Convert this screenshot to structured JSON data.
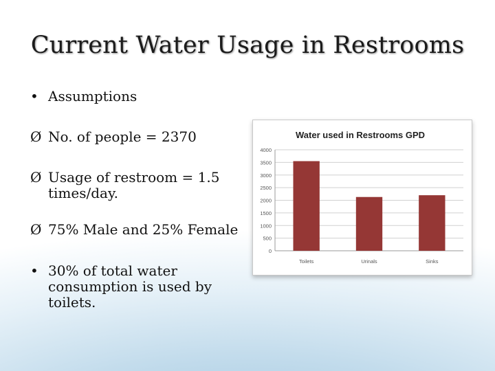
{
  "slide": {
    "title": "Current Water Usage in Restrooms",
    "bullets": [
      {
        "marker": "•",
        "lines": [
          "Assumptions"
        ]
      },
      {
        "marker": "Ø",
        "lines": [
          "No. of people = 2370"
        ]
      },
      {
        "marker": "Ø",
        "lines": [
          "Usage of restroom = 1.5",
          "times/day."
        ]
      },
      {
        "marker": "Ø",
        "lines": [
          "75% Male and 25% Female"
        ]
      },
      {
        "marker": "•",
        "lines": [
          "30% of total water",
          "consumption is used by",
          "toilets."
        ]
      }
    ]
  },
  "chart_data": {
    "type": "bar",
    "title": "Water used in Restrooms GPD",
    "categories": [
      "Toilets",
      "Urinals",
      "Sinks"
    ],
    "values": [
      3550,
      2130,
      2200
    ],
    "ylim": [
      0,
      4000
    ],
    "yticks": [
      0,
      500,
      1000,
      1500,
      2000,
      2500,
      3000,
      3500,
      4000
    ],
    "grid": true,
    "legend": "none",
    "bar_color": "#953735",
    "grid_color": "#d0d0d0"
  }
}
